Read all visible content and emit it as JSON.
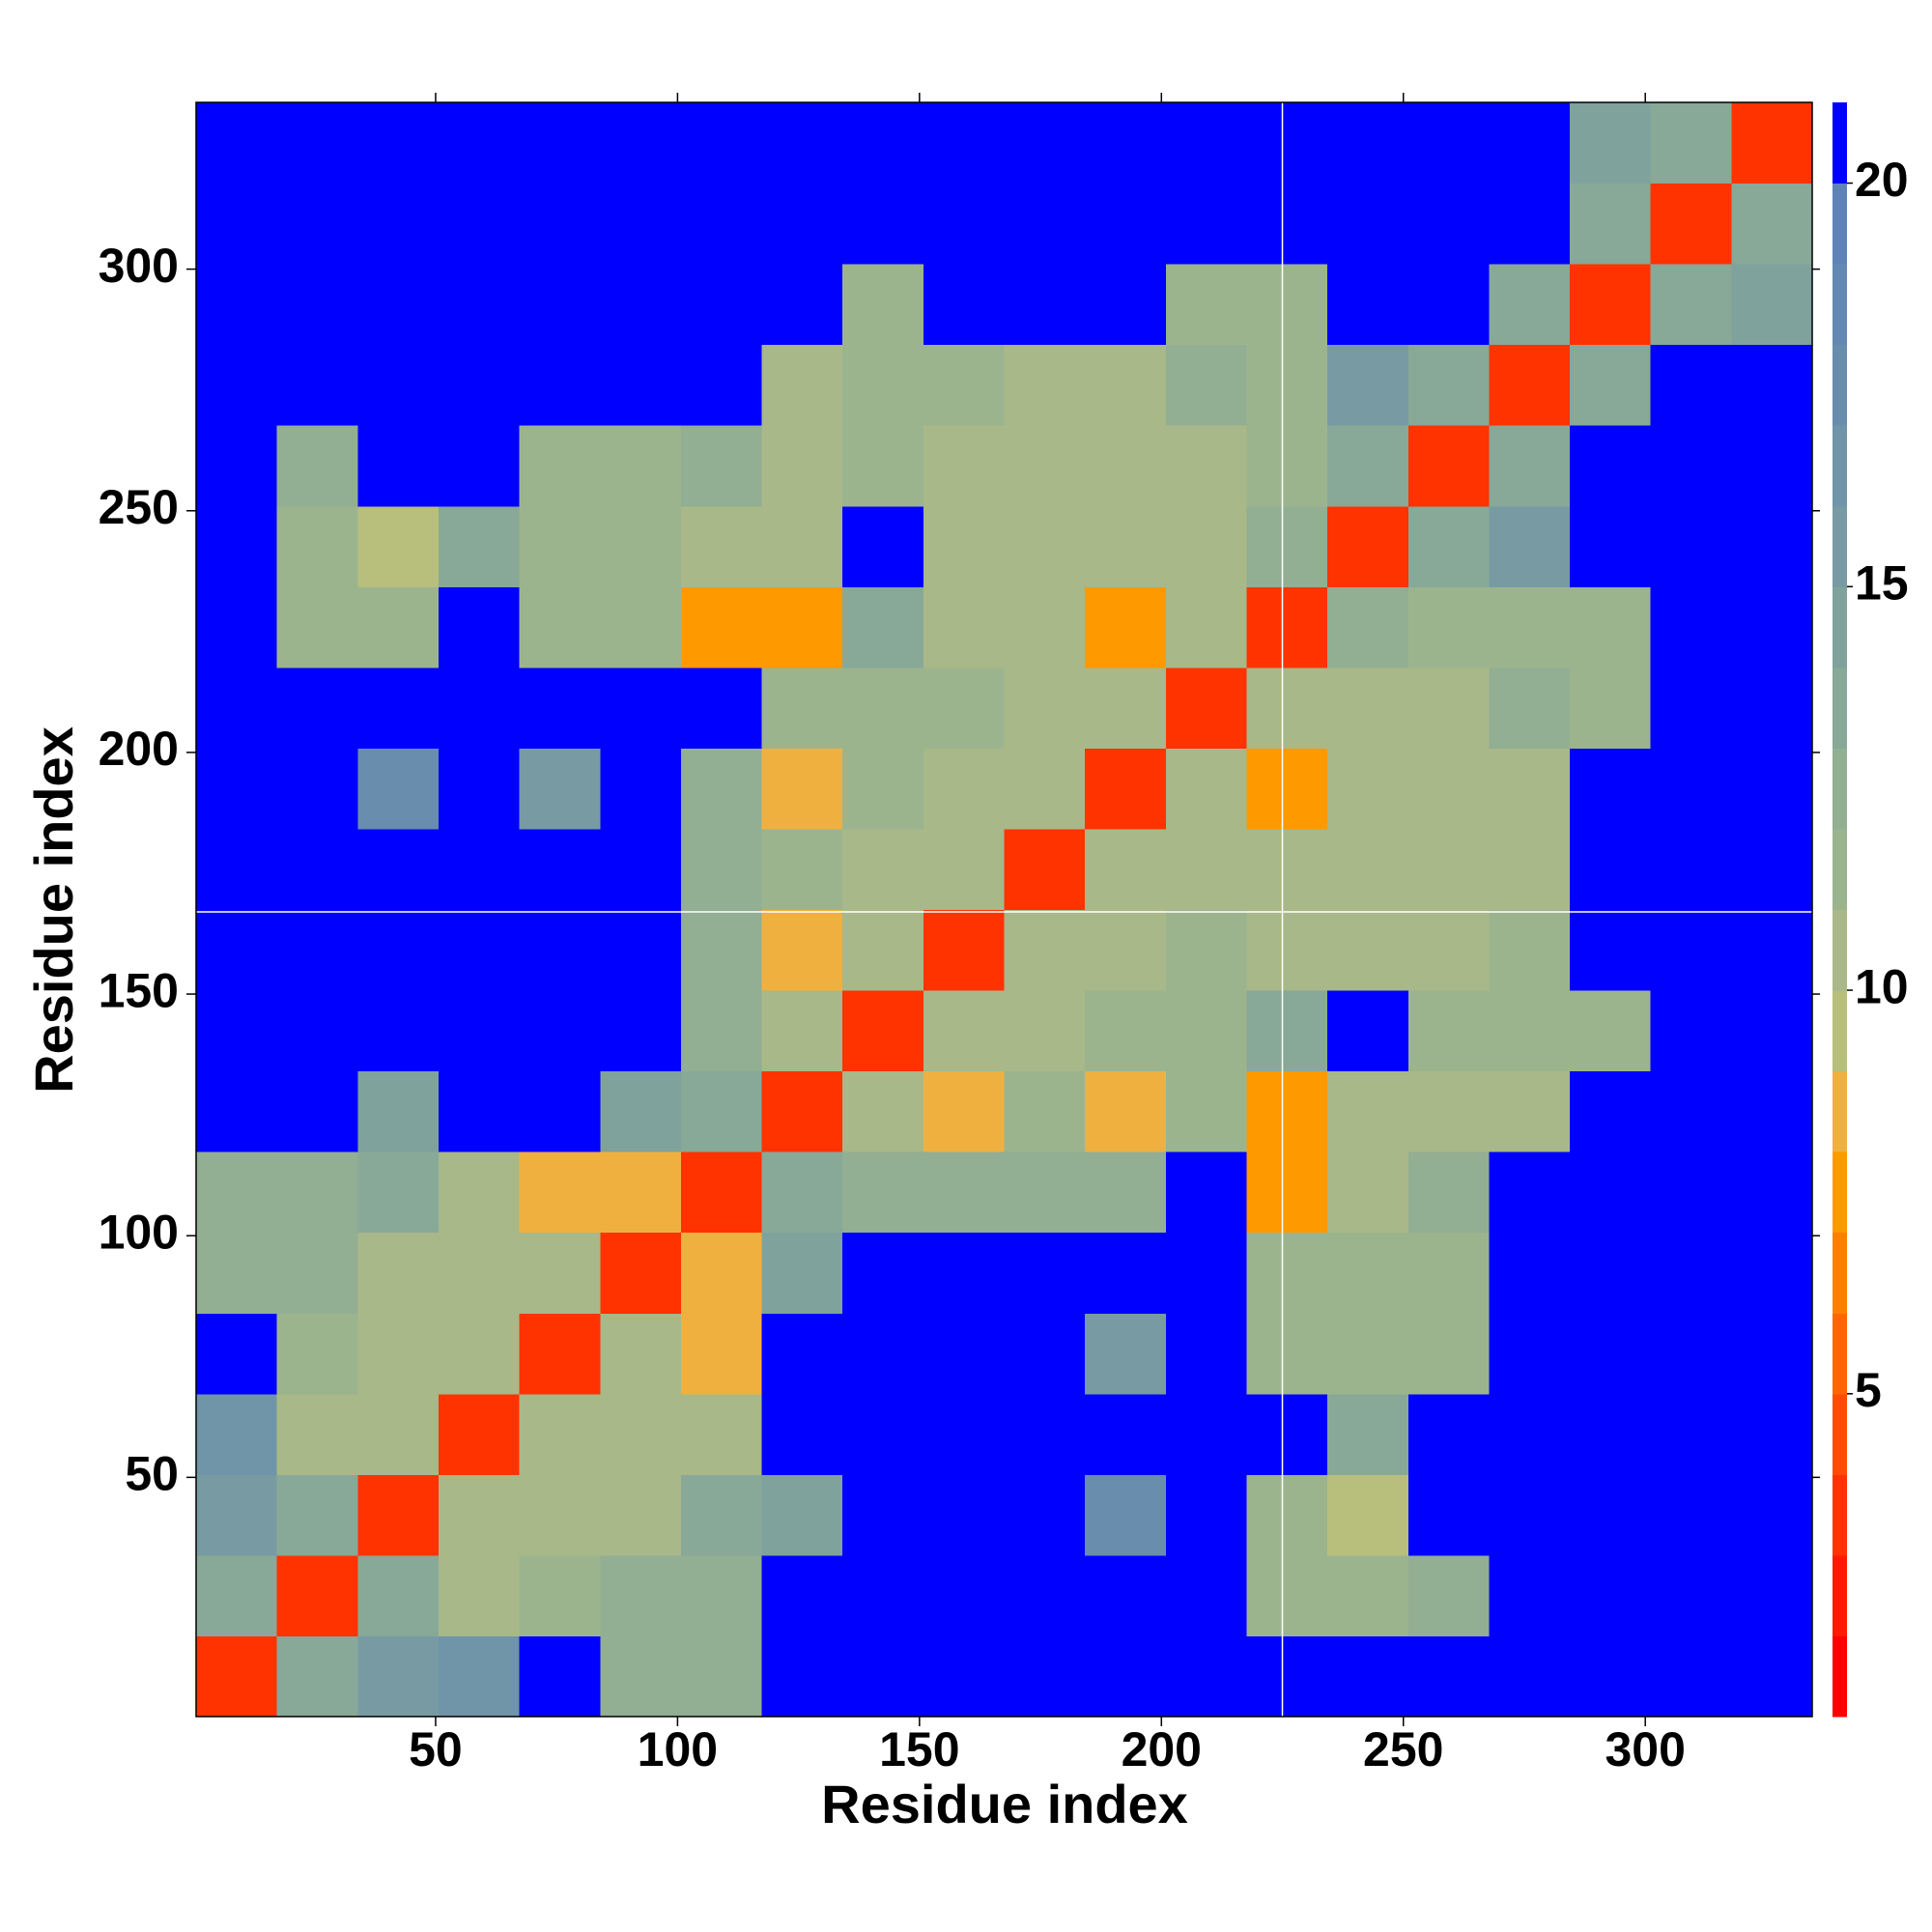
{
  "chart_data": {
    "type": "heatmap",
    "xlabel": "Residue index",
    "ylabel": "Residue index",
    "xlim": [
      0.5,
      334.5
    ],
    "ylim": [
      0.5,
      334.5
    ],
    "xticks": [
      50,
      100,
      150,
      200,
      250,
      300
    ],
    "yticks": [
      50,
      100,
      150,
      200,
      250,
      300
    ],
    "bins": [
      0.5,
      17.2,
      33.9,
      50.6,
      67.3,
      84.0,
      100.7,
      117.4,
      134.1,
      150.8,
      167.5,
      184.2,
      200.9,
      217.6,
      234.3,
      251.0,
      267.7,
      284.4,
      301.1,
      317.8,
      334.5
    ],
    "z": [
      [
        3,
        13,
        15,
        16,
        21,
        12,
        12,
        21,
        21,
        21,
        21,
        21,
        21,
        21,
        21,
        21,
        21,
        21,
        21,
        21
      ],
      [
        13,
        3,
        13,
        10,
        11,
        12,
        12,
        21,
        21,
        21,
        21,
        21,
        21,
        11,
        11,
        12,
        21,
        21,
        21,
        21
      ],
      [
        15,
        13,
        3,
        10,
        10,
        10,
        13,
        14,
        21,
        21,
        21,
        17,
        21,
        11,
        9,
        21,
        21,
        21,
        21,
        21
      ],
      [
        16,
        10,
        10,
        3,
        10,
        10,
        10,
        21,
        21,
        21,
        21,
        21,
        21,
        21,
        13,
        21,
        21,
        21,
        21,
        21
      ],
      [
        21,
        11,
        10,
        10,
        3,
        10,
        8,
        21,
        21,
        21,
        21,
        15,
        21,
        11,
        11,
        11,
        21,
        21,
        21,
        21
      ],
      [
        12,
        12,
        10,
        10,
        10,
        3,
        8,
        14,
        21,
        21,
        21,
        21,
        21,
        11,
        11,
        11,
        21,
        21,
        21,
        21
      ],
      [
        12,
        12,
        13,
        10,
        8,
        8,
        3,
        13,
        12,
        12,
        12,
        12,
        21,
        7,
        10,
        12,
        21,
        21,
        21,
        21
      ],
      [
        21,
        21,
        14,
        21,
        21,
        14,
        13,
        3,
        10,
        8,
        11,
        8,
        11,
        7,
        10,
        10,
        10,
        21,
        21,
        21
      ],
      [
        21,
        21,
        21,
        21,
        21,
        21,
        12,
        10,
        3,
        10,
        10,
        11,
        11,
        13,
        21,
        11,
        11,
        11,
        21,
        21
      ],
      [
        21,
        21,
        21,
        21,
        21,
        21,
        12,
        8,
        10,
        3,
        10,
        10,
        11,
        10,
        10,
        10,
        11,
        21,
        21,
        21
      ],
      [
        21,
        21,
        21,
        21,
        21,
        21,
        12,
        11,
        10,
        10,
        3,
        10,
        10,
        10,
        10,
        10,
        10,
        21,
        21,
        21
      ],
      [
        21,
        21,
        17,
        21,
        15,
        21,
        12,
        8,
        11,
        10,
        10,
        3,
        10,
        7,
        10,
        10,
        10,
        21,
        21,
        21
      ],
      [
        21,
        21,
        21,
        21,
        21,
        21,
        21,
        11,
        11,
        11,
        10,
        10,
        3,
        10,
        10,
        10,
        12,
        11,
        21,
        21
      ],
      [
        21,
        11,
        11,
        21,
        11,
        11,
        7,
        7,
        13,
        10,
        10,
        7,
        10,
        3,
        12,
        11,
        11,
        11,
        21,
        21
      ],
      [
        21,
        11,
        9,
        13,
        11,
        11,
        10,
        10,
        21,
        10,
        10,
        10,
        10,
        12,
        3,
        13,
        15,
        21,
        21,
        21
      ],
      [
        21,
        12,
        21,
        21,
        11,
        11,
        12,
        10,
        11,
        10,
        10,
        10,
        10,
        11,
        13,
        3,
        13,
        21,
        21,
        21
      ],
      [
        21,
        21,
        21,
        21,
        21,
        21,
        21,
        10,
        11,
        11,
        10,
        10,
        12,
        11,
        15,
        13,
        3,
        13,
        21,
        21
      ],
      [
        21,
        21,
        21,
        21,
        21,
        21,
        21,
        21,
        11,
        21,
        21,
        21,
        11,
        11,
        21,
        21,
        13,
        3,
        13,
        14
      ],
      [
        21,
        21,
        21,
        21,
        21,
        21,
        21,
        21,
        21,
        21,
        21,
        21,
        21,
        21,
        21,
        21,
        21,
        13,
        3,
        13
      ],
      [
        21,
        21,
        21,
        21,
        21,
        21,
        21,
        21,
        21,
        21,
        21,
        21,
        21,
        21,
        21,
        21,
        21,
        14,
        13,
        3
      ]
    ],
    "clim": [
      1,
      21
    ],
    "colorbar_ticks": [
      5,
      10,
      15,
      20
    ],
    "colormap": [
      "#ff0000",
      "#ff1a00",
      "#ff3300",
      "#ff4d00",
      "#ff6600",
      "#ff8000",
      "#ff9900",
      "#f0b040",
      "#b8be7c",
      "#a8b888",
      "#9cb48e",
      "#92ae93",
      "#88a898",
      "#80a29d",
      "#789ba3",
      "#7094a8",
      "#698dad",
      "#6388b2",
      "#5d83b7",
      "#0000ff"
    ],
    "crosshair": {
      "x": 225,
      "y": 167
    }
  }
}
